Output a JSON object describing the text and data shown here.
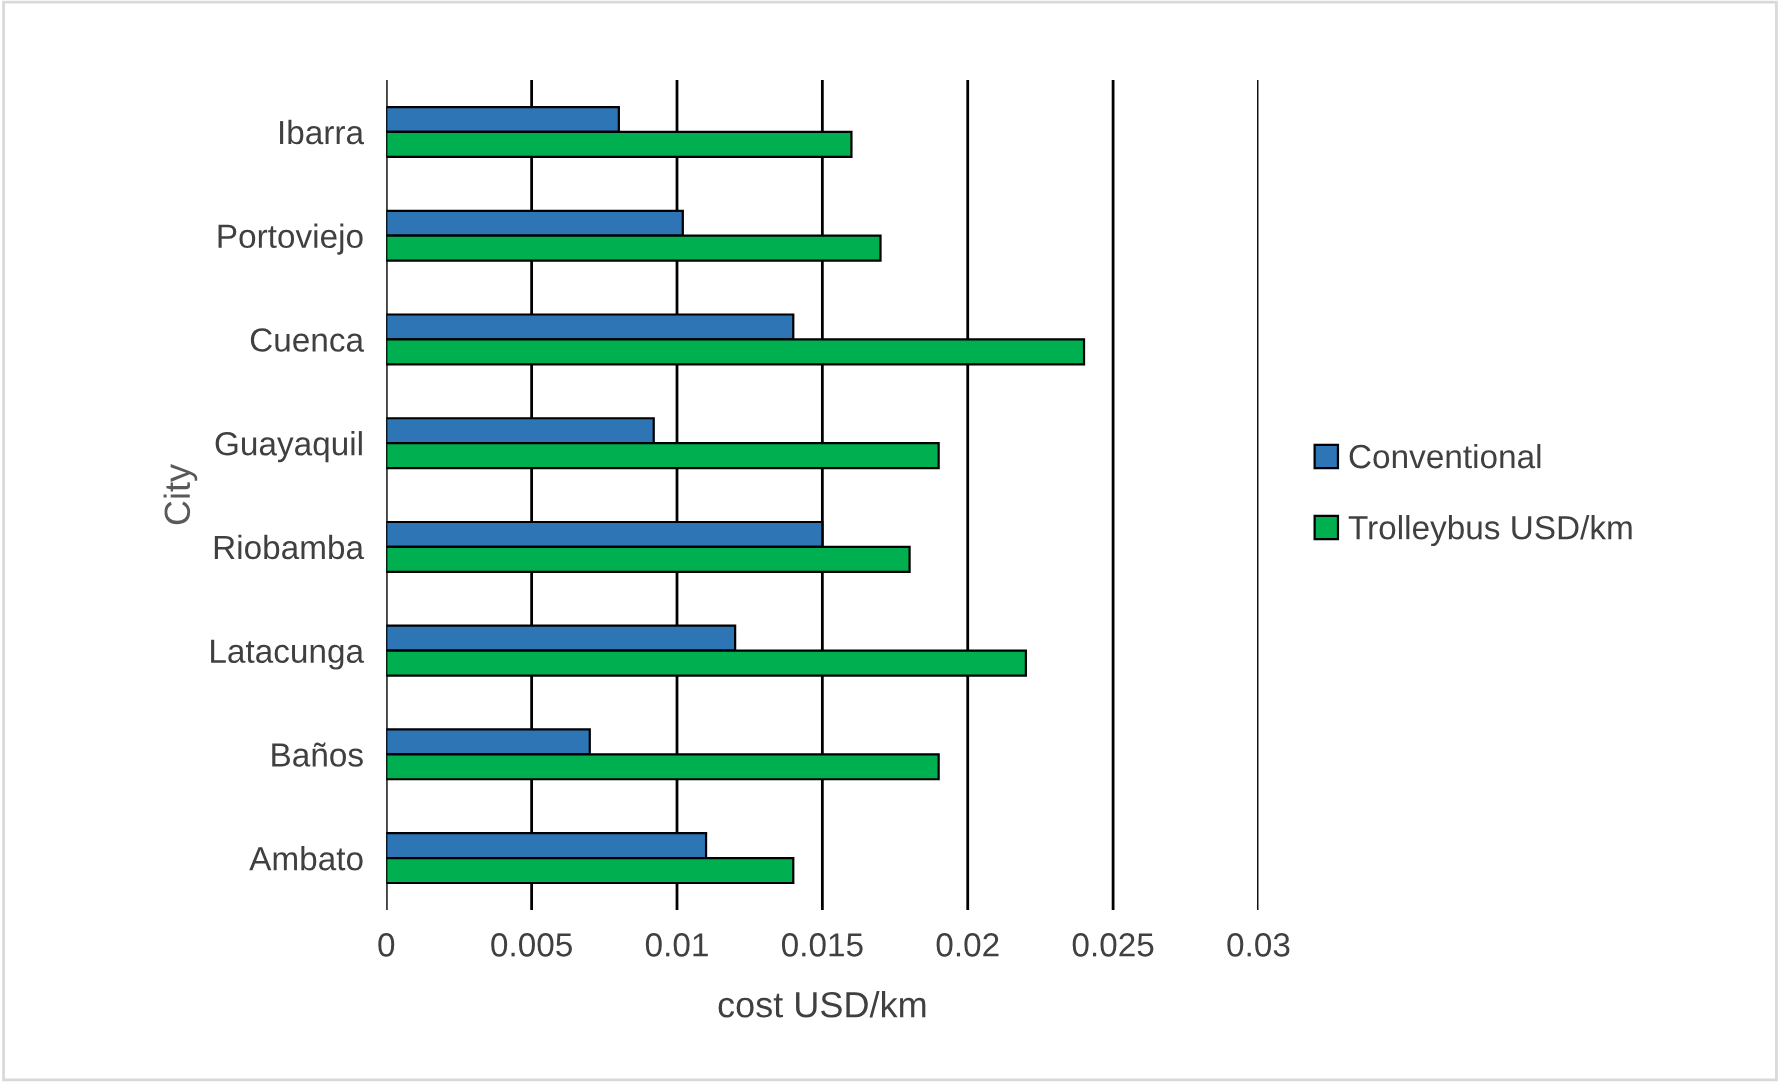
{
  "chart_data": {
    "type": "bar",
    "orientation": "horizontal",
    "xlabel": "cost USD/km",
    "ylabel": "City",
    "categories": [
      "Ibarra",
      "Portoviejo",
      "Cuenca",
      "Guayaquil",
      "Riobamba",
      "Latacunga",
      "Baños",
      "Ambato"
    ],
    "series": [
      {
        "name": "Conventional",
        "color": "#2e75b6",
        "values": [
          0.008,
          0.0102,
          0.014,
          0.0092,
          0.015,
          0.012,
          0.007,
          0.011
        ]
      },
      {
        "name": "Trolleybus USD/km",
        "color": "#00b050",
        "values": [
          0.016,
          0.017,
          0.024,
          0.019,
          0.018,
          0.022,
          0.019,
          0.014
        ]
      }
    ],
    "xlim": [
      0,
      0.03
    ],
    "xticks": [
      0,
      0.005,
      0.01,
      0.015,
      0.02,
      0.025,
      0.03
    ],
    "grid": "x",
    "legend": "right"
  }
}
